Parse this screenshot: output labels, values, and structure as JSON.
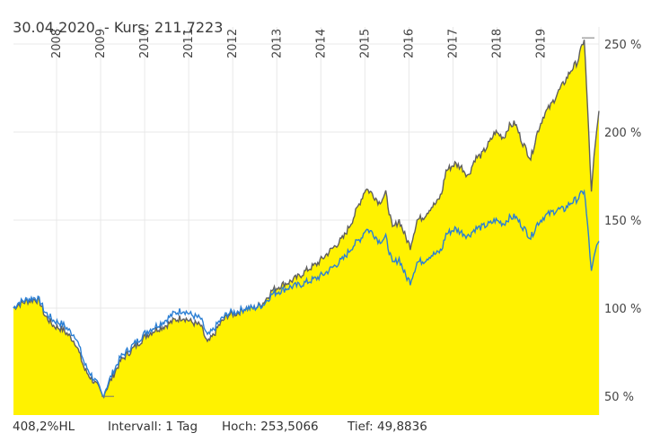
{
  "header": {
    "date": "30.04.2020",
    "separator": "  - ",
    "price_label": "Kurs: 211,7223",
    "title": "30.04.2020  - Kurs: 211,7223"
  },
  "footer": {
    "hl": "408,2%HL",
    "interval": "Intervall: 1 Tag",
    "high": "Hoch: 253,5066",
    "low": "Tief: 49,8836"
  },
  "colors": {
    "fill": "#fff200",
    "gray_line": "#5f5f5f",
    "blue_line": "#2b7fd4",
    "grid": "#e8e8e8"
  },
  "chart_data": {
    "type": "area",
    "title": "30.04.2020 - Kurs: 211,7223",
    "xlabel": "",
    "ylabel": "",
    "x_ticks": [
      "2008",
      "2009",
      "2010",
      "2011",
      "2012",
      "2013",
      "2014",
      "2015",
      "2016",
      "2017",
      "2018",
      "2019"
    ],
    "y_ticks": [
      "50 %",
      "100 %",
      "150 %",
      "200 %",
      "250 %"
    ],
    "ylim": [
      40,
      260
    ],
    "grid": true,
    "legend": "none",
    "x": [
      2007.2,
      2007.3,
      2007.5,
      2007.7,
      2007.8,
      2007.9,
      2008.1,
      2008.3,
      2008.5,
      2008.6,
      2008.8,
      2008.95,
      2009.1,
      2009.2,
      2009.4,
      2009.6,
      2009.8,
      2010.0,
      2010.2,
      2010.4,
      2010.6,
      2010.8,
      2011.0,
      2011.2,
      2011.4,
      2011.55,
      2011.7,
      2011.8,
      2012.0,
      2012.2,
      2012.4,
      2012.6,
      2012.8,
      2013.0,
      2013.2,
      2013.4,
      2013.6,
      2013.8,
      2014.0,
      2014.2,
      2014.4,
      2014.6,
      2014.8,
      2015.0,
      2015.1,
      2015.25,
      2015.4,
      2015.55,
      2015.7,
      2015.85,
      2016.0,
      2016.1,
      2016.25,
      2016.4,
      2016.55,
      2016.7,
      2016.8,
      2016.9,
      2017.1,
      2017.25,
      2017.4,
      2017.55,
      2017.7,
      2017.9,
      2018.0,
      2018.2,
      2018.3,
      2018.45,
      2018.6,
      2018.8,
      2018.95,
      2019.1,
      2019.25,
      2019.4,
      2019.55,
      2019.7,
      2019.85,
      2020.0,
      2020.1,
      2020.16,
      2020.22,
      2020.28,
      2020.33
    ],
    "series": [
      {
        "name": "Kurs (grau, gefüllt)",
        "values": [
          100,
          102,
          104,
          105,
          103,
          96,
          90,
          88,
          83,
          80,
          65,
          60,
          55,
          50,
          60,
          70,
          75,
          80,
          85,
          88,
          90,
          93,
          95,
          92,
          90,
          80,
          85,
          90,
          96,
          97,
          100,
          100,
          103,
          110,
          113,
          115,
          118,
          122,
          125,
          130,
          135,
          140,
          150,
          162,
          168,
          165,
          160,
          165,
          145,
          150,
          140,
          135,
          150,
          152,
          157,
          160,
          165,
          178,
          182,
          180,
          175,
          185,
          187,
          195,
          200,
          197,
          203,
          205,
          195,
          185,
          200,
          210,
          215,
          222,
          228,
          235,
          240,
          253,
          200,
          165,
          185,
          200,
          212
        ]
      },
      {
        "name": "Vergleich (blau)",
        "values": [
          100,
          103,
          105,
          106,
          104,
          98,
          93,
          91,
          86,
          84,
          68,
          62,
          56,
          50,
          62,
          72,
          77,
          82,
          87,
          90,
          93,
          97,
          99,
          96,
          94,
          84,
          88,
          92,
          97,
          98,
          100,
          100,
          102,
          108,
          110,
          112,
          113,
          115,
          117,
          120,
          124,
          128,
          135,
          140,
          145,
          143,
          138,
          140,
          125,
          128,
          118,
          115,
          126,
          127,
          130,
          131,
          133,
          142,
          145,
          143,
          141,
          145,
          146,
          148,
          150,
          148,
          151,
          152,
          147,
          140,
          148,
          152,
          154,
          156,
          156,
          160,
          162,
          167,
          140,
          120,
          128,
          135,
          138
        ]
      }
    ]
  },
  "axis": {
    "years": [
      "2008",
      "2009",
      "2010",
      "2011",
      "2012",
      "2013",
      "2014",
      "2015",
      "2016",
      "2017",
      "2018",
      "2019"
    ],
    "y_labels": [
      "250 %",
      "200 %",
      "150 %",
      "100 %",
      "50 %"
    ],
    "y_values": [
      250,
      200,
      150,
      100,
      50
    ]
  }
}
